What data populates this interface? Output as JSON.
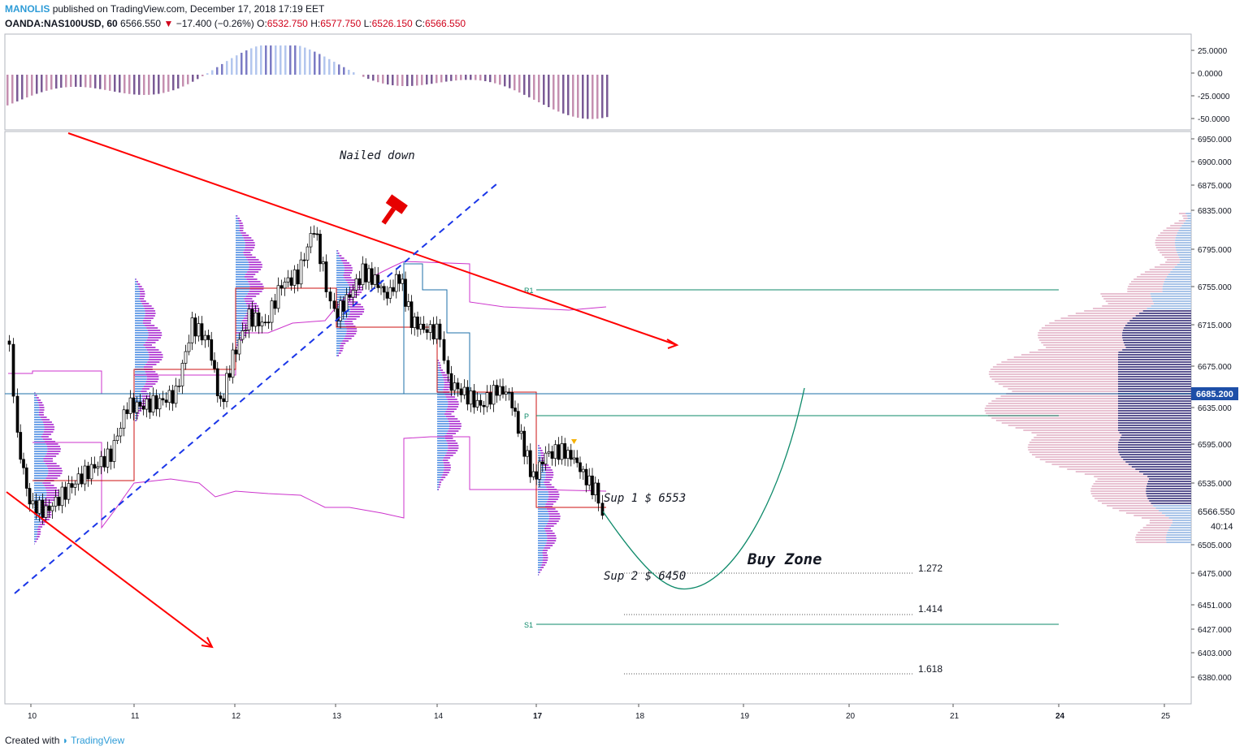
{
  "header": {
    "author": "MANOLIS",
    "published": "published on TradingView.com, December 17, 2018 17:19 EET",
    "symbol": "OANDA:NAS100USD, 60",
    "last": "6566.550",
    "change": "−17.400 (−0.26%)",
    "o_label": "O:",
    "o": "6532.750",
    "h_label": "H:",
    "h": "6577.750",
    "l_label": "L:",
    "l": "6526.150",
    "c_label": "C:",
    "c": "6566.550"
  },
  "footer": {
    "created": "Created with",
    "brand": "TradingView"
  },
  "oscillator_axis": [
    "25.0000",
    "0.0000",
    "-25.0000",
    "-50.0000"
  ],
  "price_axis": [
    "6950.000",
    "6900.000",
    "6875.000",
    "6835.000",
    "6795.000",
    "6755.000",
    "6715.000",
    "6675.000",
    "6635.000",
    "6595.000",
    "6535.000",
    "6505.000",
    "6475.000",
    "6451.000",
    "6427.000",
    "6403.000",
    "6380.000"
  ],
  "price_labels": {
    "highlight": "6685.200",
    "current": "6566.550",
    "countdown": "40:14"
  },
  "time_axis": [
    "10",
    "11",
    "12",
    "13",
    "14",
    "17",
    "18",
    "19",
    "20",
    "21",
    "24",
    "25"
  ],
  "annotations": {
    "nailed": "Nailed down",
    "sup1": "Sup 1 $ 6553",
    "sup2": "Sup 2  $ 6450",
    "buy": "Buy Zone",
    "fib1": "1.272",
    "fib2": "1.414",
    "fib3": "1.618",
    "pivot_r1": "R1",
    "pivot_p": "P",
    "pivot_s1": "S1"
  },
  "colors": {
    "bull": "#ffffff",
    "bear": "#000000",
    "trend": "#ff0000",
    "channel": "#1a36e8",
    "pivot": "#0e8a6a",
    "vwap": "#cc33cc",
    "hline": "#1e6fa8",
    "osc_pos": "#b3c6ee",
    "osc_neg": "#c48fb0",
    "highlight": "#1e4fa8",
    "hammer": "#e60000"
  },
  "chart_data": {
    "type": "candlestick",
    "ylim": [
      6380,
      6960
    ],
    "oscillator_ylim": [
      -60,
      32
    ],
    "x_ticks": [
      "10",
      "11",
      "12",
      "13",
      "14",
      "17",
      "18",
      "19",
      "20",
      "21",
      "24",
      "25"
    ],
    "hlines": [
      {
        "name": "R1",
        "y": 6790
      },
      {
        "name": "P",
        "y": 6665
      },
      {
        "name": "S1",
        "y": 6455
      },
      {
        "name": "current",
        "y": 6685.2
      }
    ],
    "fib_levels": [
      {
        "name": "1.272",
        "y": 6500
      },
      {
        "name": "1.414",
        "y": 6465
      },
      {
        "name": "1.618",
        "y": 6408
      }
    ]
  }
}
